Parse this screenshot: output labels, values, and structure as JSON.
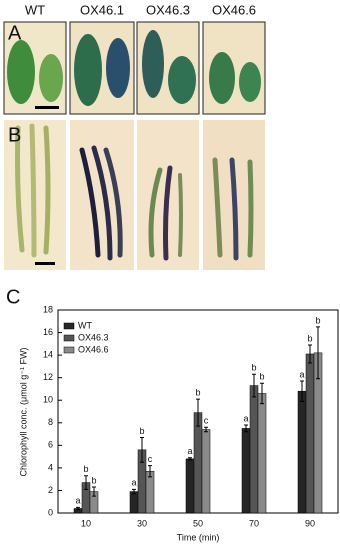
{
  "panels": {
    "a": "A",
    "b": "B",
    "c": "C"
  },
  "columns": [
    "WT",
    "OX46.1",
    "OX46.3",
    "OX46.6"
  ],
  "chart_data": {
    "type": "bar",
    "x_label": "Time (min)",
    "y_label": "Chlorophyll conc. (μmol g⁻¹ FW)",
    "categories": [
      "10",
      "30",
      "50",
      "70",
      "90"
    ],
    "series": [
      {
        "name": "WT",
        "color": "#262626",
        "values": [
          0.4,
          1.9,
          4.8,
          7.5,
          10.8
        ],
        "errors": [
          0.1,
          0.2,
          0.1,
          0.3,
          0.9
        ],
        "letters": [
          "a",
          "a",
          "a",
          "a",
          "a"
        ]
      },
      {
        "name": "OX46.3",
        "color": "#555555",
        "values": [
          2.7,
          5.6,
          8.9,
          11.3,
          14.1
        ],
        "errors": [
          0.6,
          1.1,
          1.2,
          1.0,
          0.8
        ],
        "letters": [
          "b",
          "b",
          "b",
          "b",
          "b"
        ]
      },
      {
        "name": "OX46.6",
        "color": "#8a8a8a",
        "values": [
          1.9,
          3.7,
          7.4,
          10.6,
          14.2
        ],
        "errors": [
          0.4,
          0.5,
          0.2,
          0.9,
          2.3
        ],
        "letters": [
          "b",
          "c",
          "c",
          "b",
          "b"
        ]
      }
    ],
    "ylim": [
      0,
      18
    ],
    "yticks": [
      0,
      2,
      4,
      6,
      8,
      10,
      12,
      14,
      16,
      18
    ]
  }
}
